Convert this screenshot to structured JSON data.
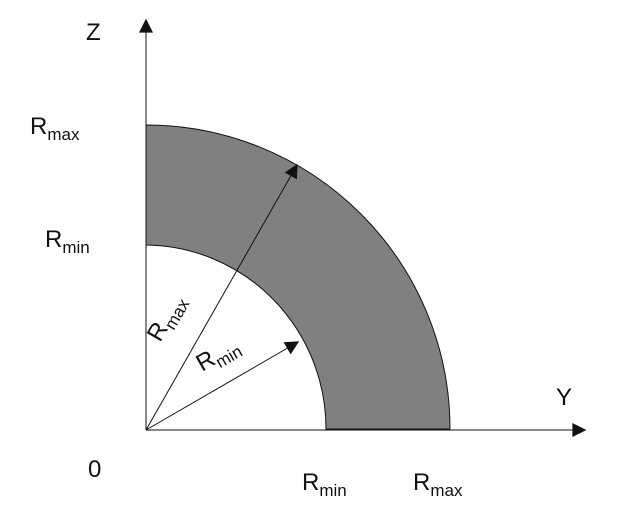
{
  "diagram": {
    "axes": {
      "horizontal_label": "Y",
      "vertical_label": "Z",
      "origin_label": "0"
    },
    "tick_labels": {
      "z_max": {
        "main": "R",
        "sub": "max"
      },
      "z_min": {
        "main": "R",
        "sub": "min"
      },
      "y_min": {
        "main": "R",
        "sub": "min"
      },
      "y_max": {
        "main": "R",
        "sub": "max"
      }
    },
    "radius_labels": {
      "outer": {
        "main": "R",
        "sub": "max"
      },
      "inner": {
        "main": "R",
        "sub": "min"
      }
    },
    "colors": {
      "annulus_fill": "#808080",
      "line": "#111111",
      "background": "#ffffff"
    }
  }
}
